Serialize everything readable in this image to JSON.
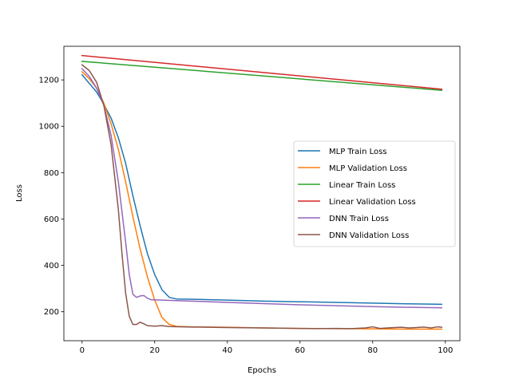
{
  "chart_data": {
    "type": "line",
    "title": "",
    "xlabel": "Epochs",
    "ylabel": "Loss",
    "xlim": [
      -5,
      104
    ],
    "ylim": [
      75,
      1345
    ],
    "xticks": [
      0,
      20,
      40,
      60,
      80,
      100
    ],
    "yticks": [
      200,
      400,
      600,
      800,
      1000,
      1200
    ],
    "grid": false,
    "legend_position": "center-right",
    "series": [
      {
        "name": "MLP Train Loss",
        "color": "#1f77b4",
        "points": [
          [
            0,
            1222
          ],
          [
            2,
            1185
          ],
          [
            4,
            1148
          ],
          [
            6,
            1095
          ],
          [
            8,
            1035
          ],
          [
            10,
            950
          ],
          [
            12,
            840
          ],
          [
            14,
            700
          ],
          [
            16,
            570
          ],
          [
            18,
            450
          ],
          [
            20,
            360
          ],
          [
            22,
            295
          ],
          [
            24,
            262
          ],
          [
            26,
            255
          ],
          [
            30,
            254
          ],
          [
            40,
            250
          ],
          [
            50,
            246
          ],
          [
            60,
            243
          ],
          [
            70,
            240
          ],
          [
            80,
            237
          ],
          [
            90,
            234
          ],
          [
            99,
            232
          ]
        ]
      },
      {
        "name": "MLP Validation Loss",
        "color": "#ff7f0e",
        "points": [
          [
            0,
            1235
          ],
          [
            2,
            1205
          ],
          [
            4,
            1165
          ],
          [
            6,
            1100
          ],
          [
            8,
            1010
          ],
          [
            10,
            900
          ],
          [
            12,
            760
          ],
          [
            14,
            610
          ],
          [
            16,
            470
          ],
          [
            18,
            350
          ],
          [
            20,
            250
          ],
          [
            22,
            175
          ],
          [
            24,
            145
          ],
          [
            26,
            137
          ],
          [
            30,
            135
          ],
          [
            40,
            133
          ],
          [
            50,
            130
          ],
          [
            60,
            128
          ],
          [
            70,
            127
          ],
          [
            80,
            126
          ],
          [
            90,
            125
          ],
          [
            99,
            125
          ]
        ]
      },
      {
        "name": "Linear Train Loss",
        "color": "#2ca02c",
        "points": [
          [
            0,
            1280
          ],
          [
            99,
            1155
          ]
        ]
      },
      {
        "name": "Linear Validation Loss",
        "color": "#d62728",
        "points": [
          [
            0,
            1305
          ],
          [
            99,
            1160
          ]
        ]
      },
      {
        "name": "DNN Train Loss",
        "color": "#9467bd",
        "points": [
          [
            0,
            1248
          ],
          [
            2,
            1215
          ],
          [
            4,
            1165
          ],
          [
            6,
            1090
          ],
          [
            8,
            960
          ],
          [
            10,
            760
          ],
          [
            12,
            500
          ],
          [
            13,
            360
          ],
          [
            14,
            275
          ],
          [
            15,
            262
          ],
          [
            16,
            268
          ],
          [
            17,
            270
          ],
          [
            18,
            258
          ],
          [
            19,
            252
          ],
          [
            22,
            250
          ],
          [
            30,
            246
          ],
          [
            40,
            240
          ],
          [
            50,
            235
          ],
          [
            60,
            230
          ],
          [
            70,
            226
          ],
          [
            80,
            222
          ],
          [
            90,
            219
          ],
          [
            99,
            217
          ]
        ]
      },
      {
        "name": "DNN Validation Loss",
        "color": "#8c564b",
        "points": [
          [
            0,
            1265
          ],
          [
            2,
            1240
          ],
          [
            3,
            1215
          ],
          [
            4,
            1190
          ],
          [
            6,
            1090
          ],
          [
            8,
            920
          ],
          [
            10,
            640
          ],
          [
            11,
            450
          ],
          [
            12,
            280
          ],
          [
            13,
            180
          ],
          [
            14,
            145
          ],
          [
            15,
            145
          ],
          [
            16,
            155
          ],
          [
            17,
            148
          ],
          [
            18,
            140
          ],
          [
            20,
            138
          ],
          [
            22,
            140
          ],
          [
            24,
            136
          ],
          [
            30,
            134
          ],
          [
            40,
            132
          ],
          [
            50,
            130
          ],
          [
            60,
            128
          ],
          [
            64,
            127
          ],
          [
            70,
            128
          ],
          [
            74,
            127
          ],
          [
            78,
            130
          ],
          [
            80,
            135
          ],
          [
            82,
            128
          ],
          [
            84,
            130
          ],
          [
            86,
            132
          ],
          [
            88,
            133
          ],
          [
            90,
            130
          ],
          [
            92,
            132
          ],
          [
            94,
            134
          ],
          [
            96,
            130
          ],
          [
            98,
            135
          ],
          [
            99,
            133
          ]
        ]
      }
    ]
  }
}
